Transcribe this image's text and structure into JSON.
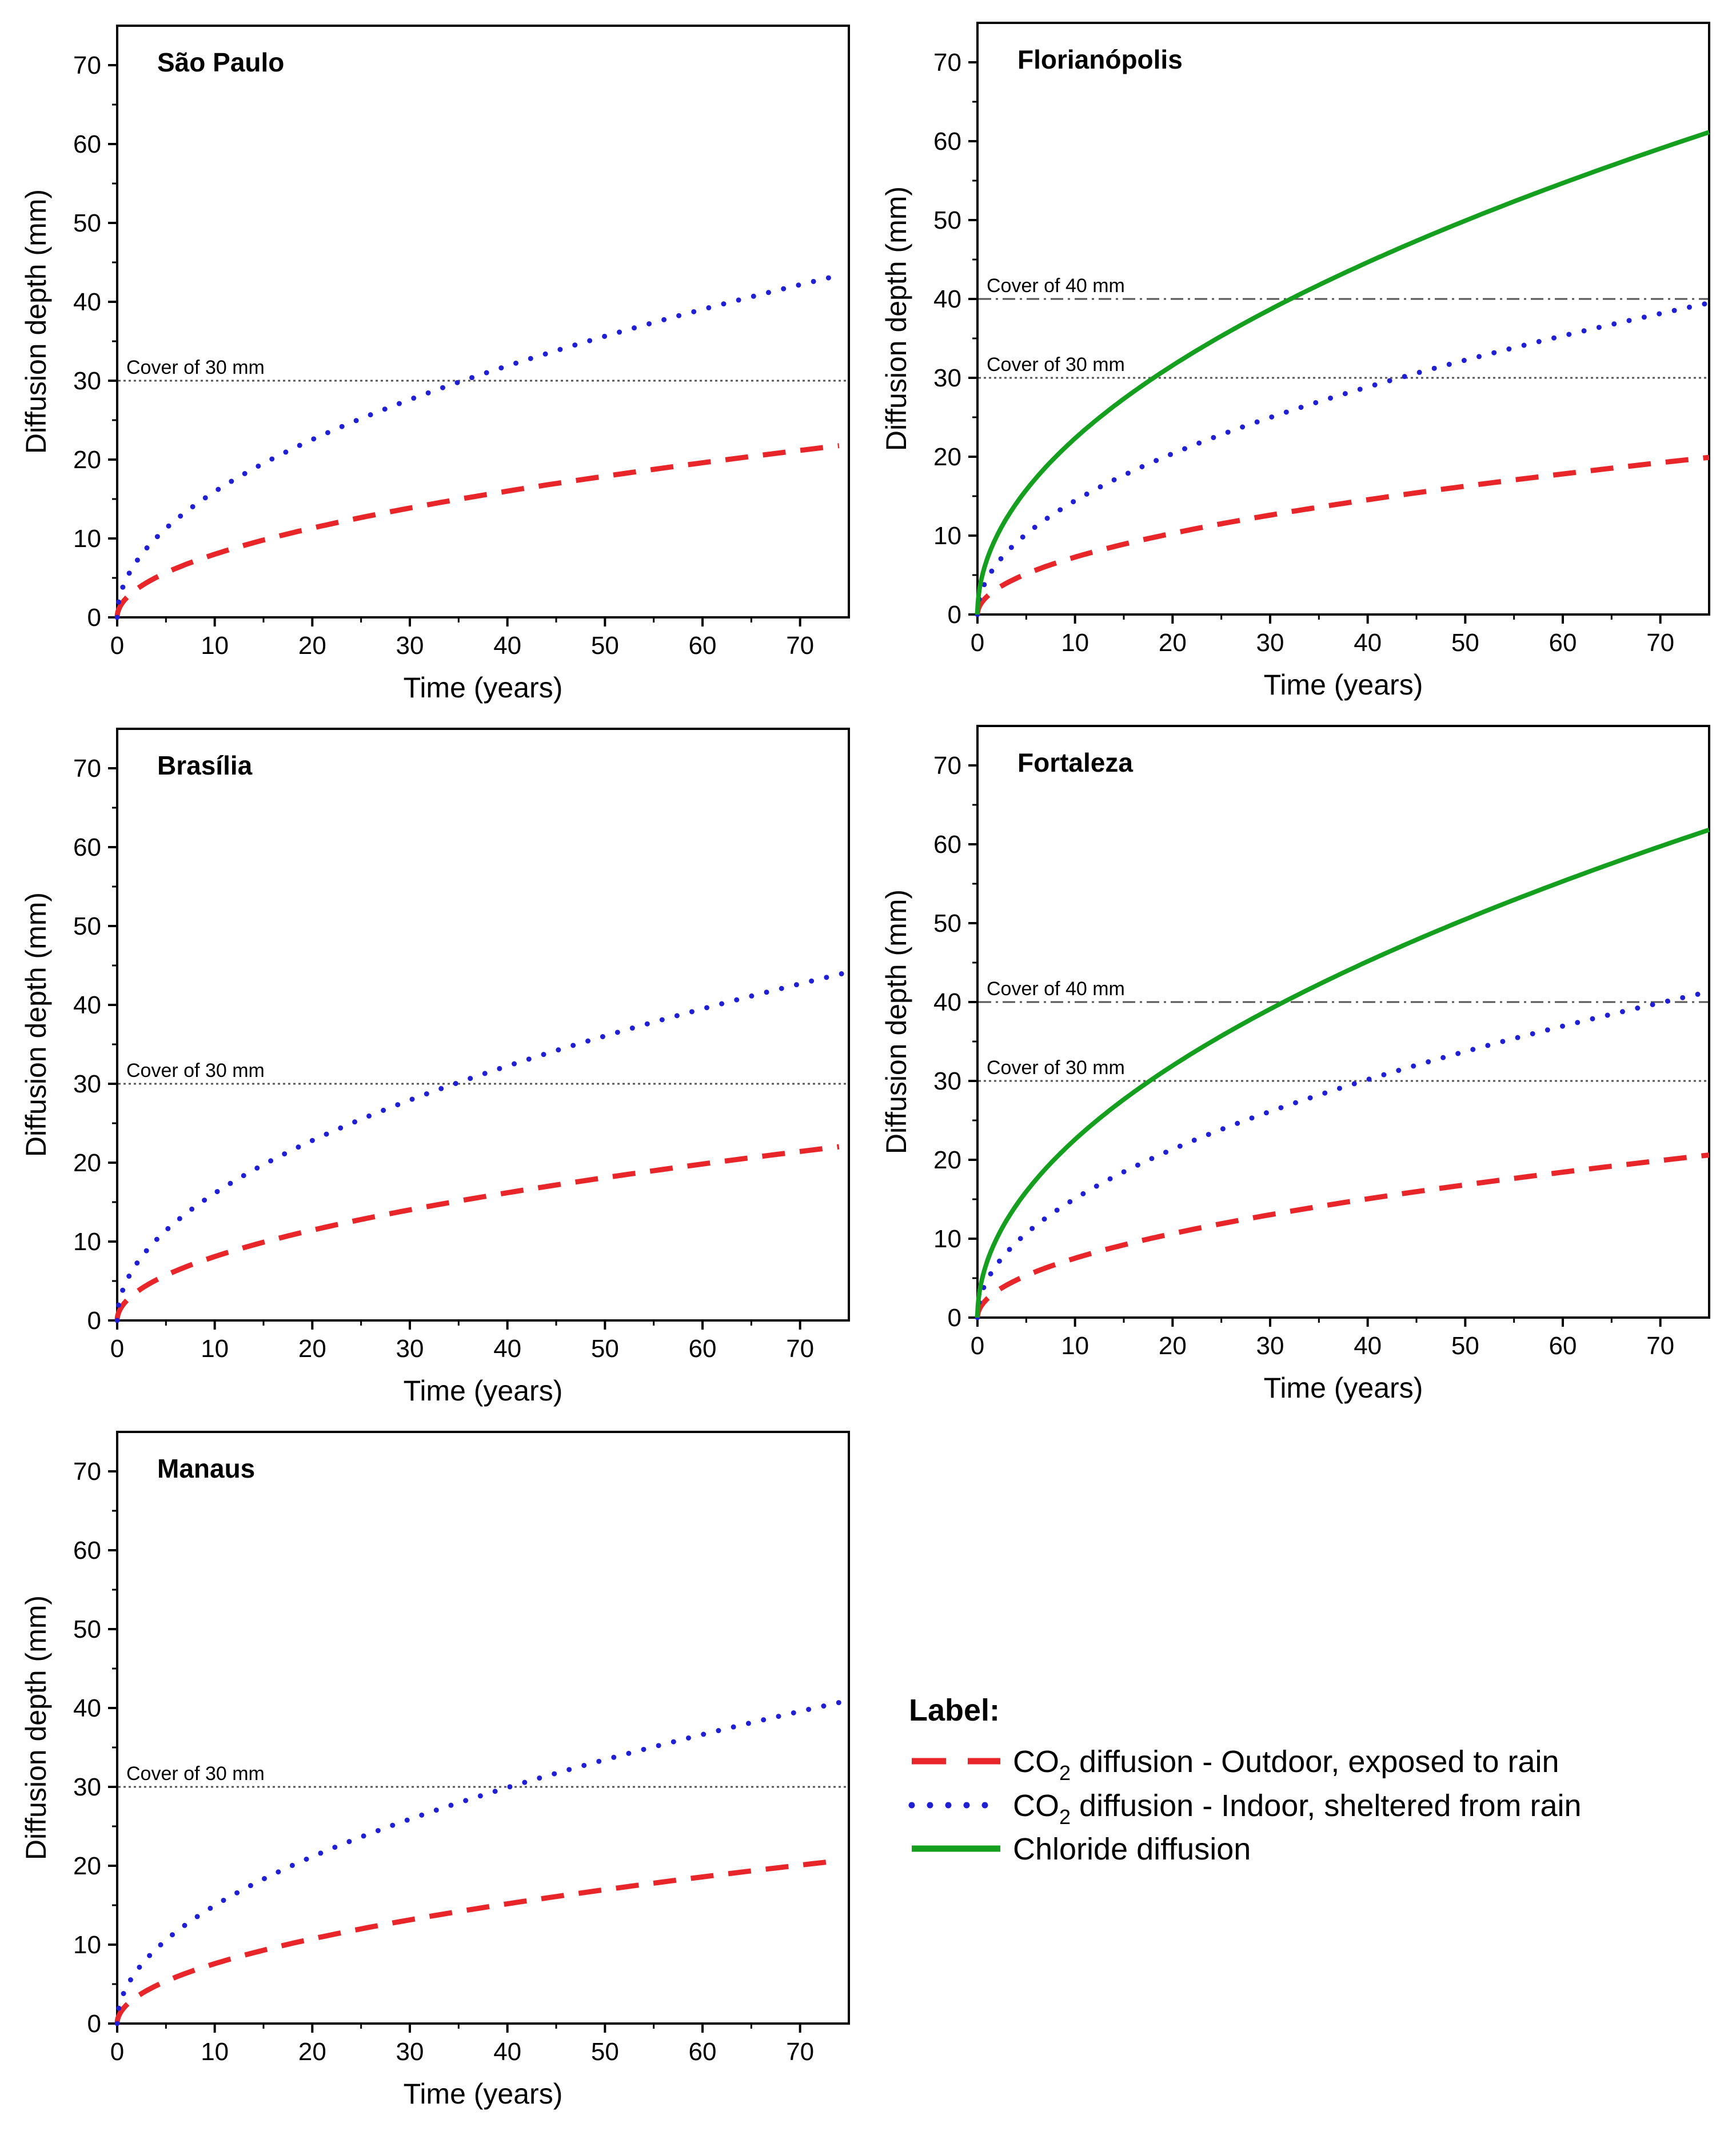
{
  "figure": {
    "legend": {
      "title": "Label:",
      "entries": [
        {
          "key": "outdoor",
          "prefix": "CO",
          "sub": "2",
          "text": " diffusion - Outdoor, exposed to rain",
          "color": "#e8262a",
          "style": "dashed"
        },
        {
          "key": "indoor",
          "prefix": "CO",
          "sub": "2",
          "text": " diffusion - Indoor, sheltered from rain",
          "color": "#1f1fd6",
          "style": "dotted"
        },
        {
          "key": "chloride",
          "prefix": "",
          "sub": "",
          "text": "Chloride diffusion",
          "color": "#14a01e",
          "style": "solid"
        }
      ]
    }
  },
  "chart_data": [
    {
      "type": "line",
      "title": "São Paulo",
      "xlabel": "Time (years)",
      "ylabel": "Diffusion depth (mm)",
      "xlim": [
        0,
        75
      ],
      "ylim": [
        0,
        75
      ],
      "xticks": [
        0,
        10,
        20,
        30,
        40,
        50,
        60,
        70
      ],
      "yticks": [
        0,
        10,
        20,
        30,
        40,
        50,
        60,
        70
      ],
      "reference_lines": [
        {
          "label": "Cover of 30 mm",
          "y": 30,
          "style": "dotted"
        }
      ],
      "series": [
        {
          "name": "CO2 diffusion - Outdoor, exposed to rain",
          "key": "outdoor",
          "coef": 2.53,
          "x_end": 74,
          "x": [
            0,
            5,
            10,
            20,
            30,
            40,
            50,
            60,
            74
          ],
          "y": [
            0,
            5.7,
            8.0,
            11.3,
            13.9,
            16.0,
            17.9,
            19.6,
            21.8
          ]
        },
        {
          "name": "CO2 diffusion - Indoor, sheltered from rain",
          "key": "indoor",
          "coef": 5.04,
          "x_end": 74,
          "x": [
            0,
            5,
            10,
            20,
            30,
            40,
            50,
            60,
            74
          ],
          "y": [
            0,
            11.3,
            15.9,
            22.5,
            27.6,
            31.9,
            35.6,
            39.0,
            43.4
          ]
        }
      ]
    },
    {
      "type": "line",
      "title": "Florianópolis",
      "xlabel": "Time (years)",
      "ylabel": "Diffusion depth (mm)",
      "xlim": [
        0,
        75
      ],
      "ylim": [
        0,
        75
      ],
      "xticks": [
        0,
        10,
        20,
        30,
        40,
        50,
        60,
        70
      ],
      "yticks": [
        0,
        10,
        20,
        30,
        40,
        50,
        60,
        70
      ],
      "reference_lines": [
        {
          "label": "Cover of 40 mm",
          "y": 40,
          "style": "dashdot"
        },
        {
          "label": "Cover of 30 mm",
          "y": 30,
          "style": "dotted"
        }
      ],
      "series": [
        {
          "name": "CO2 diffusion - Outdoor, exposed to rain",
          "key": "outdoor",
          "coef": 2.3,
          "x_end": 75,
          "x": [
            0,
            5,
            10,
            20,
            30,
            40,
            50,
            60,
            75
          ],
          "y": [
            0,
            5.1,
            7.3,
            10.3,
            12.6,
            14.5,
            16.3,
            17.8,
            19.9
          ]
        },
        {
          "name": "CO2 diffusion - Indoor, sheltered from rain",
          "key": "indoor",
          "coef": 4.56,
          "x_end": 75,
          "x": [
            0,
            5,
            10,
            20,
            30,
            40,
            50,
            60,
            75
          ],
          "y": [
            0,
            10.2,
            14.4,
            20.4,
            25.0,
            28.8,
            32.2,
            35.3,
            39.5
          ]
        },
        {
          "name": "Chloride diffusion",
          "key": "chloride",
          "coef": 7.06,
          "x_end": 75,
          "x": [
            0,
            5,
            10,
            20,
            30,
            40,
            50,
            60,
            75
          ],
          "y": [
            0,
            15.8,
            22.3,
            31.6,
            38.7,
            44.7,
            49.9,
            54.7,
            61.1
          ]
        }
      ]
    },
    {
      "type": "line",
      "title": "Brasília",
      "xlabel": "Time (years)",
      "ylabel": "Diffusion depth (mm)",
      "xlim": [
        0,
        75
      ],
      "ylim": [
        0,
        75
      ],
      "xticks": [
        0,
        10,
        20,
        30,
        40,
        50,
        60,
        70
      ],
      "yticks": [
        0,
        10,
        20,
        30,
        40,
        50,
        60,
        70
      ],
      "reference_lines": [
        {
          "label": "Cover of 30 mm",
          "y": 30,
          "style": "dotted"
        }
      ],
      "series": [
        {
          "name": "CO2 diffusion - Outdoor, exposed to rain",
          "key": "outdoor",
          "coef": 2.56,
          "x_end": 74,
          "x": [
            0,
            5,
            10,
            20,
            30,
            40,
            50,
            60,
            74
          ],
          "y": [
            0,
            5.7,
            8.1,
            11.4,
            14.0,
            16.2,
            18.1,
            19.8,
            22.0
          ]
        },
        {
          "name": "CO2 diffusion - Indoor, sheltered from rain",
          "key": "indoor",
          "coef": 5.1,
          "x_end": 75,
          "x": [
            0,
            5,
            10,
            20,
            30,
            40,
            50,
            60,
            75
          ],
          "y": [
            0,
            11.4,
            16.1,
            22.8,
            27.9,
            32.3,
            36.1,
            39.5,
            44.2
          ]
        }
      ]
    },
    {
      "type": "line",
      "title": "Fortaleza",
      "xlabel": "Time (years)",
      "ylabel": "Diffusion depth (mm)",
      "xlim": [
        0,
        75
      ],
      "ylim": [
        0,
        75
      ],
      "xticks": [
        0,
        10,
        20,
        30,
        40,
        50,
        60,
        70
      ],
      "yticks": [
        0,
        10,
        20,
        30,
        40,
        50,
        60,
        70
      ],
      "reference_lines": [
        {
          "label": "Cover of 40 mm",
          "y": 40,
          "style": "dashdot"
        },
        {
          "label": "Cover of 30 mm",
          "y": 30,
          "style": "dotted"
        }
      ],
      "series": [
        {
          "name": "CO2 diffusion - Outdoor, exposed to rain",
          "key": "outdoor",
          "coef": 2.38,
          "x_end": 75,
          "x": [
            0,
            5,
            10,
            20,
            30,
            40,
            50,
            60,
            75
          ],
          "y": [
            0,
            5.3,
            7.5,
            10.6,
            13.0,
            15.1,
            16.8,
            18.4,
            20.6
          ]
        },
        {
          "name": "CO2 diffusion - Indoor, sheltered from rain",
          "key": "indoor",
          "coef": 4.77,
          "x_end": 75,
          "x": [
            0,
            5,
            10,
            20,
            30,
            40,
            50,
            60,
            75
          ],
          "y": [
            0,
            10.7,
            15.1,
            21.3,
            26.1,
            30.2,
            33.7,
            36.9,
            41.3
          ]
        },
        {
          "name": "Chloride diffusion",
          "key": "chloride",
          "coef": 7.14,
          "x_end": 75,
          "x": [
            0,
            5,
            10,
            20,
            30,
            40,
            50,
            60,
            75
          ],
          "y": [
            0,
            16.0,
            22.6,
            31.9,
            39.1,
            45.2,
            50.5,
            55.3,
            61.8
          ]
        }
      ]
    },
    {
      "type": "line",
      "title": "Manaus",
      "xlabel": "Time (years)",
      "ylabel": "Diffusion depth (mm)",
      "xlim": [
        0,
        75
      ],
      "ylim": [
        0,
        75
      ],
      "xticks": [
        0,
        10,
        20,
        30,
        40,
        50,
        60,
        70
      ],
      "yticks": [
        0,
        10,
        20,
        30,
        40,
        50,
        60,
        70
      ],
      "reference_lines": [
        {
          "label": "Cover of 30 mm",
          "y": 30,
          "style": "dotted"
        }
      ],
      "series": [
        {
          "name": "CO2 diffusion - Outdoor, exposed to rain",
          "key": "outdoor",
          "coef": 2.4,
          "x_end": 74,
          "x": [
            0,
            5,
            10,
            20,
            30,
            40,
            50,
            60,
            74
          ],
          "y": [
            0,
            5.4,
            7.6,
            10.7,
            13.1,
            15.2,
            17.0,
            18.6,
            20.6
          ]
        },
        {
          "name": "CO2 diffusion - Indoor, sheltered from rain",
          "key": "indoor",
          "coef": 4.73,
          "x_end": 75,
          "x": [
            0,
            5,
            10,
            20,
            30,
            40,
            50,
            60,
            75
          ],
          "y": [
            0,
            10.6,
            15.0,
            21.2,
            25.9,
            29.9,
            33.4,
            36.6,
            41.0
          ]
        }
      ]
    }
  ]
}
